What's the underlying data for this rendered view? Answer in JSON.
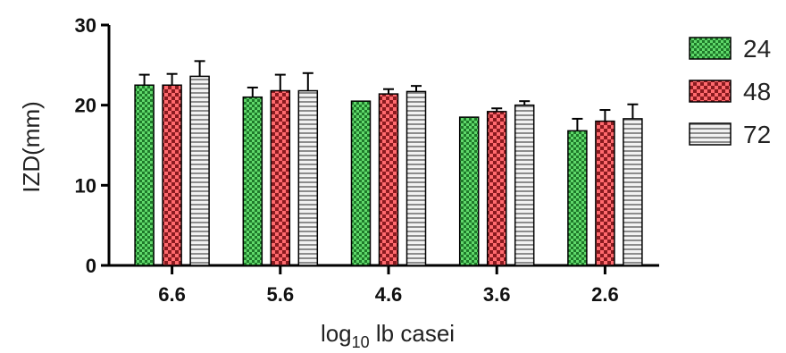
{
  "chart_data": {
    "type": "bar",
    "title": "",
    "xlabel_prefix": "log",
    "xlabel_sub": "10",
    "xlabel_suffix": " lb casei",
    "ylabel": "IZD(mm)",
    "ylim": [
      0,
      30
    ],
    "yticks": [
      0,
      10,
      20,
      30
    ],
    "categories": [
      "6.6",
      "5.6",
      "4.6",
      "3.6",
      "2.6"
    ],
    "legend_position": "right",
    "series": [
      {
        "name": "24",
        "pattern": "checker",
        "color": "#2e9e3a",
        "values": [
          22.5,
          21.0,
          20.5,
          18.5,
          16.8
        ],
        "errors": [
          1.3,
          1.2,
          0.0,
          0.0,
          1.5
        ]
      },
      {
        "name": "48",
        "pattern": "checker",
        "color": "#c8383c",
        "values": [
          22.5,
          21.8,
          21.4,
          19.2,
          18.0
        ],
        "errors": [
          1.4,
          2.0,
          0.6,
          0.4,
          1.4
        ]
      },
      {
        "name": "72",
        "pattern": "stripes",
        "color": "#b8b8b8",
        "values": [
          23.6,
          21.8,
          21.7,
          20.0,
          18.3
        ],
        "errors": [
          1.9,
          2.2,
          0.7,
          0.5,
          1.8
        ]
      }
    ]
  }
}
